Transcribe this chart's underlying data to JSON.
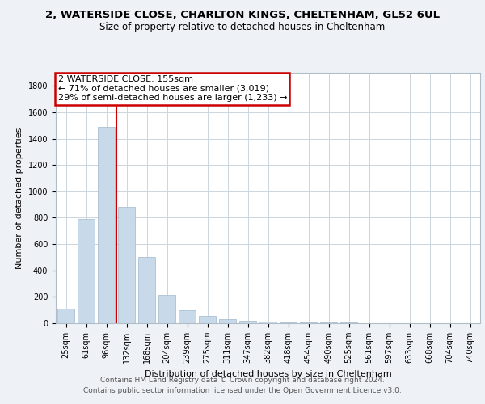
{
  "title_line1": "2, WATERSIDE CLOSE, CHARLTON KINGS, CHELTENHAM, GL52 6UL",
  "title_line2": "Size of property relative to detached houses in Cheltenham",
  "xlabel": "Distribution of detached houses by size in Cheltenham",
  "ylabel": "Number of detached properties",
  "categories": [
    "25sqm",
    "61sqm",
    "96sqm",
    "132sqm",
    "168sqm",
    "204sqm",
    "239sqm",
    "275sqm",
    "311sqm",
    "347sqm",
    "382sqm",
    "418sqm",
    "454sqm",
    "490sqm",
    "525sqm",
    "561sqm",
    "597sqm",
    "633sqm",
    "668sqm",
    "704sqm",
    "740sqm"
  ],
  "values": [
    110,
    790,
    1490,
    880,
    500,
    215,
    100,
    55,
    30,
    18,
    12,
    8,
    6,
    5,
    4,
    3,
    3,
    2,
    2,
    1,
    1
  ],
  "bar_color": "#c8daea",
  "bar_edge_color": "#a0b8cc",
  "property_label": "2 WATERSIDE CLOSE: 155sqm",
  "annotation_line1": "← 71% of detached houses are smaller (3,019)",
  "annotation_line2": "29% of semi-detached houses are larger (1,233) →",
  "vline_color": "#cc0000",
  "annotation_box_color": "#cc0000",
  "vline_x": 2.5,
  "ylim": [
    0,
    1900
  ],
  "yticks": [
    0,
    200,
    400,
    600,
    800,
    1000,
    1200,
    1400,
    1600,
    1800
  ],
  "footer_line1": "Contains HM Land Registry data © Crown copyright and database right 2024.",
  "footer_line2": "Contains public sector information licensed under the Open Government Licence v3.0.",
  "bg_color": "#eef2f6",
  "plot_bg_color": "#ffffff",
  "grid_color": "#ccd4dc",
  "title_fontsize": 9.5,
  "subtitle_fontsize": 8.5,
  "axis_label_fontsize": 8,
  "tick_fontsize": 7,
  "annotation_fontsize": 8,
  "footer_fontsize": 6.5
}
